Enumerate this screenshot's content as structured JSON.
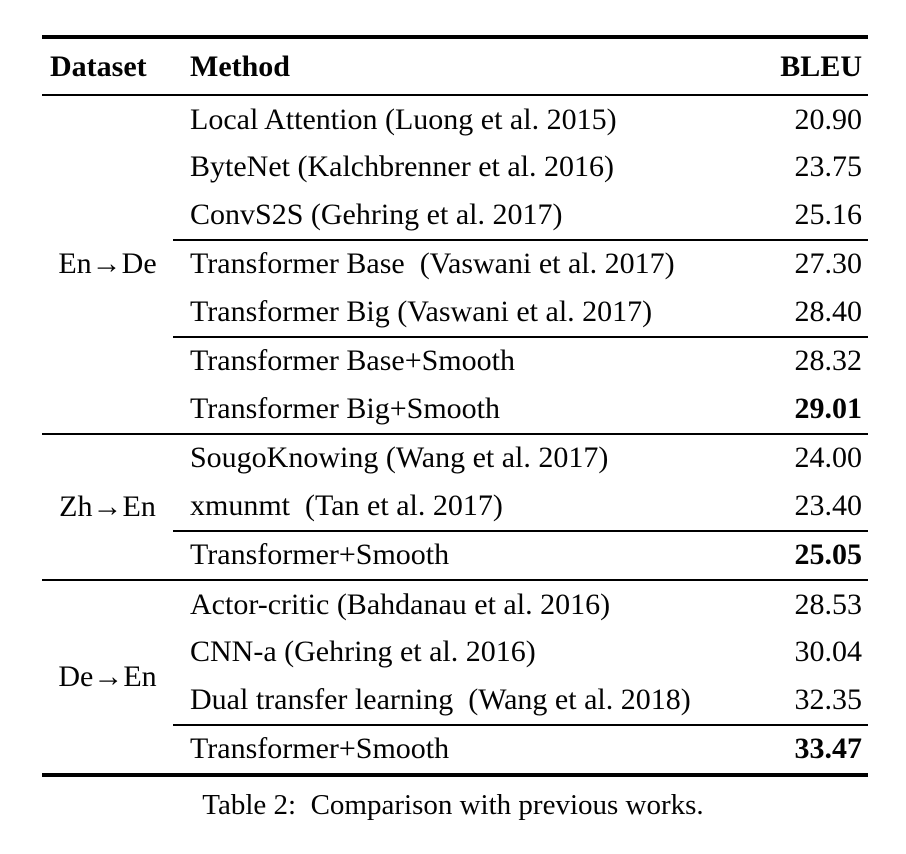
{
  "page": {
    "caption": "Table 2:  Comparison with previous works."
  },
  "colors": {
    "background": "#ffffff",
    "text": "#030303",
    "rule": "#000000"
  },
  "table": {
    "headers": [
      "Dataset",
      "Method",
      "BLEU"
    ],
    "groups": [
      {
        "dataset": "En→De",
        "subgroups": [
          {
            "rows": [
              {
                "method": "Local Attention (Luong et al. 2015)",
                "bleu": "20.90",
                "bold": false
              },
              {
                "method": "ByteNet (Kalchbrenner et al. 2016)",
                "bleu": "23.75",
                "bold": false
              },
              {
                "method": "ConvS2S (Gehring et al. 2017)",
                "bleu": "25.16",
                "bold": false
              }
            ]
          },
          {
            "rows": [
              {
                "method": "Transformer Base  (Vaswani et al. 2017)",
                "bleu": "27.30",
                "bold": false
              },
              {
                "method": "Transformer Big (Vaswani et al. 2017)",
                "bleu": "28.40",
                "bold": false
              }
            ]
          },
          {
            "rows": [
              {
                "method": "Transformer Base+Smooth",
                "bleu": "28.32",
                "bold": false
              },
              {
                "method": "Transformer Big+Smooth",
                "bleu": "29.01",
                "bold": true
              }
            ]
          }
        ]
      },
      {
        "dataset": "Zh→En",
        "subgroups": [
          {
            "rows": [
              {
                "method": "SougoKnowing (Wang et al. 2017)",
                "bleu": "24.00",
                "bold": false
              },
              {
                "method": "xmunmt  (Tan et al. 2017)",
                "bleu": "23.40",
                "bold": false
              }
            ]
          },
          {
            "rows": [
              {
                "method": "Transformer+Smooth",
                "bleu": "25.05",
                "bold": true
              }
            ]
          }
        ]
      },
      {
        "dataset": "De→En",
        "subgroups": [
          {
            "rows": [
              {
                "method": "Actor-critic (Bahdanau et al. 2016)",
                "bleu": "28.53",
                "bold": false
              },
              {
                "method": "CNN-a (Gehring et al. 2016)",
                "bleu": "30.04",
                "bold": false
              },
              {
                "method": "Dual transfer learning  (Wang et al. 2018)",
                "bleu": "32.35",
                "bold": false
              }
            ]
          },
          {
            "rows": [
              {
                "method": "Transformer+Smooth",
                "bleu": "33.47",
                "bold": true
              }
            ]
          }
        ]
      }
    ]
  }
}
